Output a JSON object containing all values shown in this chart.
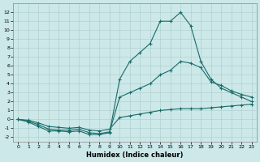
{
  "xlabel": "Humidex (Indice chaleur)",
  "bg_color": "#cce8e8",
  "grid_color": "#aacccc",
  "line_color": "#1a6b6b",
  "x_values": [
    0,
    1,
    2,
    3,
    4,
    5,
    6,
    7,
    8,
    9,
    10,
    11,
    12,
    13,
    14,
    15,
    16,
    17,
    18,
    19,
    20,
    21,
    22,
    23
  ],
  "line1": [
    0.0,
    -0.3,
    -0.8,
    -1.3,
    -1.3,
    -1.4,
    -1.3,
    -1.7,
    -1.7,
    -1.5,
    4.5,
    6.5,
    7.5,
    8.5,
    11.0,
    11.0,
    12.0,
    10.5,
    6.5,
    4.5,
    3.5,
    3.0,
    2.5,
    2.0
  ],
  "line2": [
    0.0,
    -0.2,
    -0.6,
    -1.1,
    -1.2,
    -1.2,
    -1.1,
    -1.5,
    -1.6,
    -1.4,
    2.5,
    3.0,
    3.5,
    4.0,
    5.0,
    5.5,
    6.5,
    6.3,
    5.8,
    4.2,
    3.8,
    3.2,
    2.8,
    2.5
  ],
  "line3": [
    0.0,
    -0.1,
    -0.4,
    -0.8,
    -0.9,
    -1.0,
    -0.9,
    -1.2,
    -1.3,
    -1.1,
    0.2,
    0.4,
    0.6,
    0.8,
    1.0,
    1.1,
    1.2,
    1.2,
    1.2,
    1.3,
    1.4,
    1.5,
    1.6,
    1.7
  ],
  "ylim": [
    -2.5,
    13
  ],
  "yticks": [
    -2,
    -1,
    0,
    1,
    2,
    3,
    4,
    5,
    6,
    7,
    8,
    9,
    10,
    11,
    12
  ],
  "xlim": [
    -0.5,
    23.5
  ],
  "xticks": [
    0,
    1,
    2,
    3,
    4,
    5,
    6,
    7,
    8,
    9,
    10,
    11,
    12,
    13,
    14,
    15,
    16,
    17,
    18,
    19,
    20,
    21,
    22,
    23
  ],
  "xlabel_fontsize": 6.0,
  "tick_fontsize": 4.5,
  "linewidth": 0.8,
  "markersize": 3.5
}
